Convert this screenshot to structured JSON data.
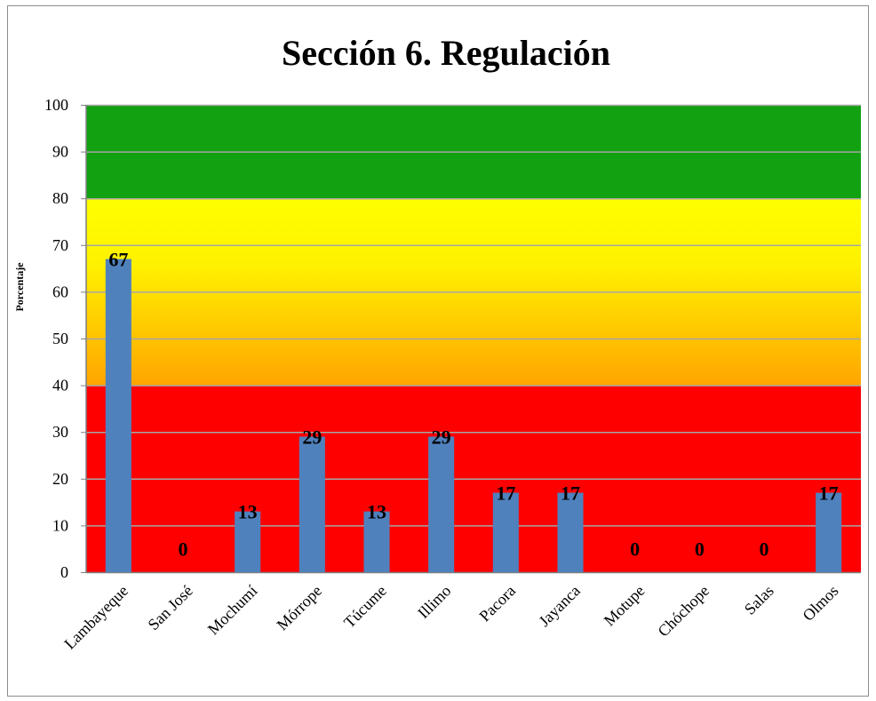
{
  "chart_data": {
    "type": "bar",
    "title": "Sección 6. Regulación",
    "xlabel": "",
    "ylabel": "Porcentaje",
    "ylim": [
      0,
      100
    ],
    "yticks": [
      0,
      10,
      20,
      30,
      40,
      50,
      60,
      70,
      80,
      90,
      100
    ],
    "categories": [
      "Lambayeque",
      "San José",
      "Mochumí",
      "Mórrope",
      "Túcume",
      "Illimo",
      "Pacora",
      "Jayanca",
      "Motupe",
      "Chóchope",
      "Salas",
      "Olmos"
    ],
    "values": [
      67,
      0,
      13,
      29,
      13,
      29,
      17,
      17,
      0,
      0,
      0,
      17
    ],
    "data_labels": true,
    "grid": true,
    "legend": "none",
    "bands": [
      {
        "from": 0,
        "to": 40,
        "color": "#ff0000"
      },
      {
        "from": 40,
        "to": 80,
        "color": "#ffc000",
        "gradient_top": "#ffff00"
      },
      {
        "from": 80,
        "to": 100,
        "color": "#11a111"
      }
    ],
    "bar_color": "#4f81bd"
  }
}
